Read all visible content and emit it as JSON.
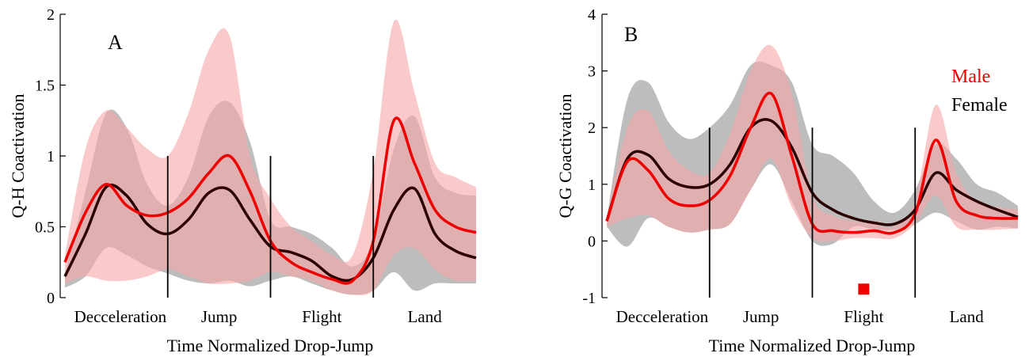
{
  "colors": {
    "male": "#ee0000",
    "male_band": "#f6a7a7",
    "female": "#2a0000",
    "female_band": "#999999"
  },
  "phases": [
    "Decceleration",
    "Jump",
    "Flight",
    "Land"
  ],
  "legend": {
    "male": "Male",
    "female": "Female"
  },
  "chart_data": [
    {
      "type": "area",
      "panel_label": "A",
      "xlabel": "Time Normalized Drop-Jump",
      "ylabel": "Q-H Coactivation",
      "xlim": [
        0,
        100
      ],
      "ylim": [
        0,
        2
      ],
      "yticks": [
        0,
        0.5,
        1,
        1.5,
        2
      ],
      "ytick_labels": [
        "0",
        "0.5",
        "1",
        "1.5",
        "2"
      ],
      "phase_boundaries": [
        25,
        50,
        75
      ],
      "phase_line_top": 1.0,
      "x": [
        0,
        5,
        10,
        15,
        20,
        25,
        30,
        35,
        40,
        45,
        50,
        55,
        60,
        65,
        70,
        75,
        80,
        85,
        90,
        95,
        100
      ],
      "series": [
        {
          "key": "female",
          "mean": [
            0.15,
            0.45,
            0.78,
            0.72,
            0.52,
            0.45,
            0.55,
            0.74,
            0.76,
            0.55,
            0.36,
            0.32,
            0.26,
            0.15,
            0.13,
            0.28,
            0.62,
            0.77,
            0.45,
            0.33,
            0.28
          ],
          "upper": [
            0.17,
            0.75,
            1.3,
            1.2,
            0.8,
            0.65,
            0.85,
            1.28,
            1.38,
            1.1,
            0.55,
            0.5,
            0.45,
            0.35,
            0.22,
            0.4,
            1.05,
            1.28,
            0.85,
            0.74,
            0.72
          ],
          "lower": [
            0.07,
            0.15,
            0.35,
            0.3,
            0.22,
            0.17,
            0.12,
            0.1,
            0.12,
            0.08,
            0.12,
            0.15,
            0.1,
            0.05,
            0.02,
            0.05,
            0.18,
            0.05,
            0.1,
            0.1,
            0.1
          ]
        },
        {
          "key": "male",
          "mean": [
            0.25,
            0.6,
            0.8,
            0.65,
            0.58,
            0.6,
            0.7,
            0.88,
            1.0,
            0.75,
            0.4,
            0.25,
            0.18,
            0.13,
            0.12,
            0.4,
            1.25,
            0.95,
            0.62,
            0.5,
            0.46
          ],
          "upper": [
            0.3,
            1.05,
            1.32,
            1.2,
            1.05,
            1.0,
            1.3,
            1.75,
            1.85,
            1.0,
            0.7,
            0.5,
            0.4,
            0.3,
            0.3,
            0.9,
            1.95,
            1.45,
            0.95,
            0.85,
            0.78
          ],
          "lower": [
            0.1,
            0.15,
            0.12,
            0.12,
            0.15,
            0.2,
            0.15,
            0.1,
            0.1,
            0.12,
            0.18,
            0.15,
            0.12,
            0.05,
            0.02,
            0.05,
            0.3,
            0.35,
            0.2,
            0.12,
            0.12
          ]
        }
      ]
    },
    {
      "type": "area",
      "panel_label": "B",
      "xlabel": "Time Normalized Drop-Jump",
      "ylabel": "Q-G Coactivation",
      "xlim": [
        0,
        100
      ],
      "ylim": [
        -1,
        4
      ],
      "yticks": [
        -1,
        0,
        1,
        2,
        3,
        4
      ],
      "ytick_labels": [
        "-1",
        "0",
        "1",
        "2",
        "3",
        "4"
      ],
      "phase_boundaries": [
        25,
        50,
        75
      ],
      "phase_line_top": 2.0,
      "significance_marker": {
        "x": 62.5,
        "y": -0.85
      },
      "x": [
        0,
        5,
        10,
        15,
        20,
        25,
        30,
        35,
        40,
        45,
        50,
        55,
        60,
        65,
        70,
        75,
        80,
        85,
        90,
        95,
        100
      ],
      "series": [
        {
          "key": "female",
          "mean": [
            0.35,
            1.45,
            1.52,
            1.1,
            0.95,
            1.0,
            1.35,
            2.0,
            2.12,
            1.65,
            0.85,
            0.55,
            0.4,
            0.32,
            0.3,
            0.55,
            1.2,
            0.9,
            0.7,
            0.55,
            0.42
          ],
          "upper": [
            0.4,
            2.5,
            2.8,
            2.1,
            1.8,
            2.0,
            2.4,
            3.1,
            3.1,
            2.8,
            1.7,
            1.5,
            1.2,
            0.7,
            0.5,
            0.9,
            1.7,
            1.45,
            1.0,
            0.85,
            0.62
          ],
          "lower": [
            0.25,
            -0.1,
            0.4,
            0.25,
            0.15,
            0.2,
            0.3,
            0.9,
            1.35,
            0.7,
            0.0,
            -0.05,
            0.25,
            0.2,
            0.2,
            0.3,
            0.5,
            0.35,
            0.2,
            0.25,
            0.22
          ]
        },
        {
          "key": "male",
          "mean": [
            0.35,
            1.4,
            1.25,
            0.75,
            0.62,
            0.72,
            1.15,
            2.0,
            2.6,
            1.5,
            0.3,
            0.18,
            0.15,
            0.18,
            0.15,
            0.48,
            1.78,
            0.7,
            0.45,
            0.4,
            0.4
          ],
          "upper": [
            0.4,
            2.0,
            2.3,
            1.6,
            1.25,
            1.2,
            1.9,
            3.0,
            3.45,
            2.6,
            0.8,
            0.45,
            0.35,
            0.3,
            0.25,
            0.7,
            2.4,
            1.2,
            0.7,
            0.6,
            0.55
          ],
          "lower": [
            0.25,
            0.4,
            0.45,
            0.25,
            0.15,
            0.2,
            0.3,
            0.9,
            1.45,
            0.6,
            0.05,
            0.0,
            0.05,
            0.05,
            0.05,
            0.3,
            0.8,
            0.25,
            0.2,
            0.2,
            0.22
          ]
        }
      ]
    }
  ]
}
